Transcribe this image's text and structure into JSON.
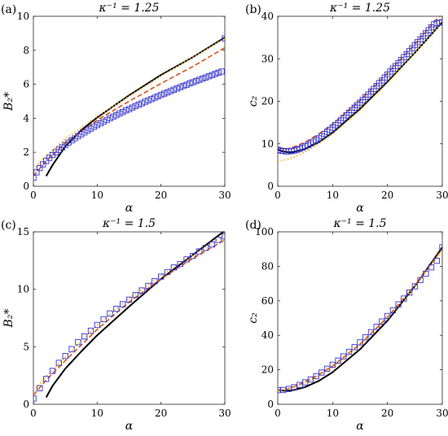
{
  "chart_data": [
    {
      "panel": "(a)",
      "type": "line",
      "title": "κ⁻¹ = 1.25",
      "xlabel": "α",
      "ylabel": "B₂*",
      "xlim": [
        0,
        30
      ],
      "ylim": [
        0,
        10
      ],
      "xticks": [
        0,
        10,
        20,
        30
      ],
      "yticks": [
        0,
        2,
        4,
        6,
        8,
        10
      ],
      "series": [
        {
          "style": "solid",
          "color": "#000000",
          "x": [
            2,
            3,
            5,
            7.5,
            10,
            15,
            20,
            25,
            30
          ],
          "y": [
            0.6,
            1.25,
            2.35,
            3.3,
            4.05,
            5.35,
            6.55,
            7.6,
            8.75
          ]
        },
        {
          "style": "dashed",
          "color": "#d95319",
          "x": [
            0,
            2,
            5,
            10,
            15,
            20,
            25,
            30
          ],
          "y": [
            0.6,
            1.5,
            2.55,
            3.9,
            5.0,
            6.05,
            7.05,
            8.15
          ]
        },
        {
          "style": "dotted",
          "color": "#edb120",
          "x": [
            0,
            2,
            5,
            10,
            15,
            20,
            25,
            30
          ],
          "y": [
            1.0,
            1.8,
            2.8,
            4.1,
            5.3,
            6.5,
            7.6,
            8.7
          ]
        },
        {
          "style": "markers",
          "color": "#3333cc",
          "x": [
            0,
            0.5,
            1,
            1.5,
            2,
            2.5,
            3,
            3.5,
            4,
            4.5,
            5,
            5.5,
            6,
            6.5,
            7,
            7.5,
            8,
            8.5,
            9,
            9.5,
            10,
            10.5,
            11,
            11.5,
            12,
            12.5,
            13,
            13.5,
            14,
            14.5,
            15,
            15.5,
            16,
            16.5,
            17,
            17.5,
            18,
            18.5,
            19,
            19.5,
            20,
            20.5,
            21,
            21.5,
            22,
            22.5,
            23,
            23.5,
            24,
            24.5,
            25,
            25.5,
            26,
            26.5,
            27,
            27.5,
            28,
            28.5,
            29,
            29.5,
            30
          ],
          "y": [
            0.5,
            0.82,
            1.07,
            1.29,
            1.49,
            1.67,
            1.84,
            2.0,
            2.15,
            2.29,
            2.43,
            2.57,
            2.7,
            2.82,
            2.94,
            3.06,
            3.17,
            3.28,
            3.39,
            3.5,
            3.6,
            3.7,
            3.8,
            3.9,
            4.0,
            4.09,
            4.18,
            4.28,
            4.37,
            4.46,
            4.54,
            4.63,
            4.72,
            4.8,
            4.88,
            4.97,
            5.05,
            5.13,
            5.21,
            5.29,
            5.37,
            5.45,
            5.52,
            5.6,
            5.68,
            5.75,
            5.83,
            5.9,
            5.97,
            6.05,
            6.12,
            6.19,
            6.26,
            6.33,
            6.4,
            6.47,
            6.54,
            6.61,
            6.68,
            6.75,
            8.7
          ]
        }
      ]
    },
    {
      "panel": "(b)",
      "type": "line",
      "title": "κ⁻¹ = 1.25",
      "xlabel": "α",
      "ylabel": "c₂",
      "xlim": [
        0,
        30
      ],
      "ylim": [
        0,
        40
      ],
      "xticks": [
        0,
        10,
        20,
        30
      ],
      "yticks": [
        0,
        10,
        20,
        30,
        40
      ],
      "series": [
        {
          "style": "solid",
          "color": "#000000",
          "x": [
            0,
            1,
            2,
            3,
            5,
            7.5,
            10,
            15,
            20,
            25,
            30
          ],
          "y": [
            8.6,
            8.2,
            8.0,
            8.1,
            8.8,
            10.4,
            12.6,
            18.2,
            24.6,
            31.4,
            38.6
          ]
        },
        {
          "style": "dashed",
          "color": "#d95319",
          "x": [
            0,
            1,
            2,
            3,
            5,
            7.5,
            10,
            15,
            20,
            25,
            30
          ],
          "y": [
            9.0,
            8.8,
            8.9,
            9.3,
            10.4,
            12.3,
            14.6,
            20.2,
            26.6,
            33.5,
            40.8
          ]
        },
        {
          "style": "dotted",
          "color": "#edb120",
          "x": [
            0,
            1,
            2,
            3,
            5,
            7.5,
            10,
            15,
            20,
            25,
            30
          ],
          "y": [
            6.0,
            6.1,
            6.4,
            6.9,
            8.1,
            10.0,
            12.3,
            17.9,
            24.3,
            31.3,
            38.5
          ]
        },
        {
          "style": "markers",
          "color": "#3333cc",
          "x": [
            0,
            0.5,
            1,
            1.5,
            2,
            2.5,
            3,
            3.5,
            4,
            4.5,
            5,
            5.5,
            6,
            6.5,
            7,
            7.5,
            8,
            8.5,
            9,
            9.5,
            10,
            10.5,
            11,
            11.5,
            12,
            12.5,
            13,
            13.5,
            14,
            14.5,
            15,
            15.5,
            16,
            16.5,
            17,
            17.5,
            18,
            18.5,
            19,
            19.5,
            20,
            20.5,
            21,
            21.5,
            22,
            22.5,
            23,
            23.5,
            24,
            24.5,
            25,
            25.5,
            26,
            26.5,
            27,
            27.5,
            28,
            28.5,
            29,
            29.5,
            30
          ],
          "y": [
            8.6,
            8.4,
            8.3,
            8.2,
            8.2,
            8.3,
            8.4,
            8.6,
            8.8,
            9.1,
            9.4,
            9.7,
            10.1,
            10.5,
            10.9,
            11.3,
            11.8,
            12.3,
            12.8,
            13.3,
            13.8,
            14.4,
            14.9,
            15.5,
            16.1,
            16.7,
            17.3,
            17.9,
            18.5,
            19.1,
            19.7,
            20.3,
            21.0,
            21.6,
            22.3,
            22.9,
            23.6,
            24.3,
            24.9,
            25.6,
            26.3,
            27.0,
            27.7,
            28.3,
            29.0,
            29.7,
            30.4,
            31.1,
            31.8,
            32.5,
            33.2,
            33.9,
            34.6,
            35.3,
            36.0,
            36.7,
            37.4,
            38.1,
            38.4,
            38.5,
            38.6
          ]
        }
      ]
    },
    {
      "panel": "(c)",
      "type": "line",
      "title": "κ⁻¹ = 1.5",
      "xlabel": "α",
      "ylabel": "B₂*",
      "xlim": [
        0,
        30
      ],
      "ylim": [
        0,
        15
      ],
      "xticks": [
        0,
        10,
        20,
        30
      ],
      "yticks": [
        0,
        5,
        10,
        15
      ],
      "series": [
        {
          "style": "solid",
          "color": "#000000",
          "x": [
            2,
            3,
            5,
            7.5,
            10,
            15,
            20,
            25,
            30
          ],
          "y": [
            0.6,
            1.6,
            3.1,
            4.6,
            6.0,
            8.5,
            10.9,
            13.0,
            15.1
          ]
        },
        {
          "style": "dashed",
          "color": "#d95319",
          "x": [
            0,
            2,
            5,
            10,
            15,
            20,
            25,
            30
          ],
          "y": [
            0.8,
            2.1,
            3.8,
            6.5,
            8.9,
            10.9,
            12.7,
            14.3
          ]
        },
        {
          "style": "dotted",
          "color": "#edb120",
          "x": [
            0,
            2,
            5,
            10,
            15,
            20,
            25,
            30
          ],
          "y": [
            1.2,
            2.4,
            4.1,
            6.9,
            9.2,
            11.2,
            13.0,
            14.7
          ]
        },
        {
          "style": "markers",
          "color": "#3333cc",
          "x": [
            0,
            1,
            2,
            3,
            4,
            5,
            6,
            7,
            8,
            9,
            10,
            11,
            12,
            13,
            14,
            15,
            16,
            17,
            18,
            19,
            20,
            21,
            22,
            23,
            24,
            25,
            26,
            27,
            28,
            29,
            30
          ],
          "y": [
            0.5,
            1.4,
            2.2,
            2.9,
            3.6,
            4.2,
            4.8,
            5.4,
            5.9,
            6.4,
            6.9,
            7.4,
            7.9,
            8.3,
            8.7,
            9.1,
            9.5,
            9.9,
            10.3,
            10.7,
            11.1,
            11.5,
            11.9,
            12.2,
            12.6,
            12.9,
            13.3,
            13.6,
            13.9,
            14.3,
            14.6
          ]
        }
      ]
    },
    {
      "panel": "(d)",
      "type": "line",
      "title": "κ⁻¹ = 1.5",
      "xlabel": "α",
      "ylabel": "c₂",
      "xlim": [
        0,
        30
      ],
      "ylim": [
        0,
        100
      ],
      "xticks": [
        0,
        10,
        20,
        30
      ],
      "yticks": [
        0,
        20,
        40,
        60,
        80,
        100
      ],
      "series": [
        {
          "style": "solid",
          "color": "#000000",
          "x": [
            0,
            1,
            2,
            3,
            5,
            7.5,
            10,
            15,
            20,
            25,
            30
          ],
          "y": [
            8.2,
            7.9,
            7.9,
            8.3,
            10.0,
            13.6,
            18.6,
            31.9,
            48.5,
            68.5,
            91.0
          ]
        },
        {
          "style": "dashed",
          "color": "#d95319",
          "x": [
            0,
            1,
            2,
            3,
            5,
            7.5,
            10,
            15,
            20,
            25,
            30
          ],
          "y": [
            8.4,
            8.5,
            9.2,
            10.3,
            13.0,
            17.2,
            22.2,
            34.9,
            50.5,
            69.0,
            90.0
          ]
        },
        {
          "style": "dotted",
          "color": "#edb120",
          "x": [
            0,
            1,
            2,
            3,
            5,
            7.5,
            10,
            15,
            20,
            25,
            30
          ],
          "y": [
            8.0,
            8.2,
            8.8,
            9.8,
            12.3,
            16.4,
            21.4,
            34.2,
            49.9,
            68.4,
            89.5
          ]
        },
        {
          "style": "markers",
          "color": "#3333cc",
          "x": [
            0,
            1,
            2,
            3,
            4,
            5,
            6,
            7,
            8,
            9,
            10,
            11,
            12,
            13,
            14,
            15,
            16,
            17,
            18,
            19,
            20,
            21,
            22,
            23,
            24,
            25,
            26,
            27,
            28,
            29,
            30
          ],
          "y": [
            8.2,
            8.3,
            8.9,
            9.9,
            11.2,
            12.7,
            14.4,
            16.3,
            18.4,
            20.6,
            22.9,
            25.3,
            27.8,
            30.4,
            33.1,
            35.9,
            38.8,
            41.8,
            44.9,
            48.0,
            51.2,
            54.5,
            57.9,
            61.3,
            64.8,
            68.4,
            72.0,
            75.7,
            79.4,
            83.2,
            91.0
          ]
        }
      ]
    }
  ]
}
